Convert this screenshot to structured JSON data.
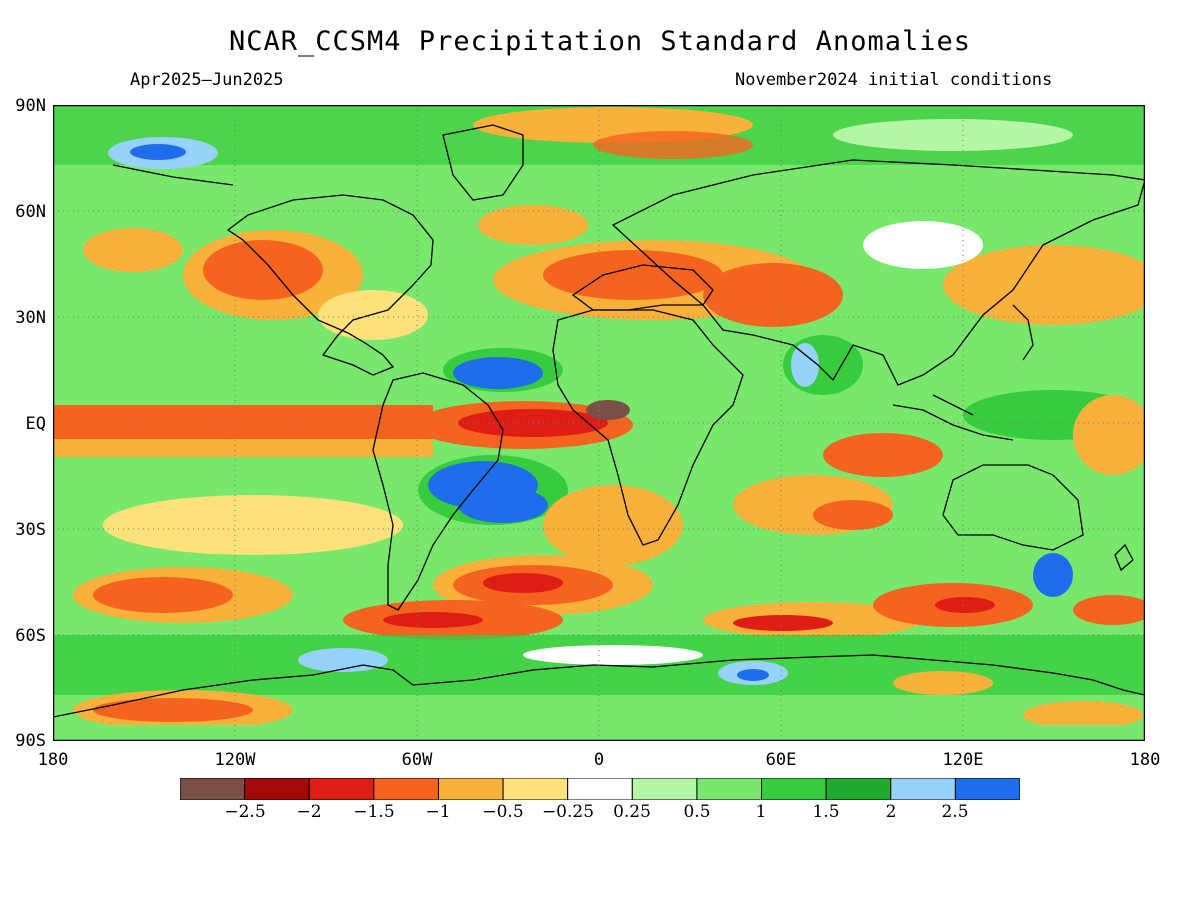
{
  "title": "NCAR_CCSM4 Precipitation Standard Anomalies",
  "period": "Apr2025–Jun2025",
  "init": "November2024 initial conditions",
  "lat_labels": [
    "90N",
    "60N",
    "30N",
    "EQ",
    "30S",
    "60S",
    "90S"
  ],
  "lon_labels": [
    "180",
    "120W",
    "60W",
    "0",
    "60E",
    "120E",
    "180"
  ],
  "colorbar": {
    "labels": [
      "−2.5",
      "−2",
      "−1.5",
      "−1",
      "−0.5",
      "−0.25",
      "0.25",
      "0.5",
      "1",
      "1.5",
      "2",
      "2.5"
    ],
    "colors": [
      "#7a5046",
      "#a50a0a",
      "#de1e14",
      "#f5641e",
      "#f9b13b",
      "#fde17a",
      "#ffffff",
      "#b4f5a6",
      "#78e86c",
      "#37cc3e",
      "#1faa2d",
      "#96d2fa",
      "#1e6eeb"
    ]
  }
}
